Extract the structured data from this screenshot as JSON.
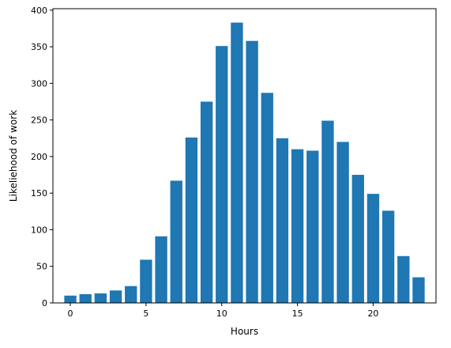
{
  "chart_data": {
    "type": "bar",
    "title": "",
    "xlabel": "Hours",
    "ylabel": "Likeliehood of work",
    "x": [
      0,
      1,
      2,
      3,
      4,
      5,
      6,
      7,
      8,
      9,
      10,
      11,
      12,
      13,
      14,
      15,
      16,
      17,
      18,
      19,
      20,
      21,
      22,
      23
    ],
    "values": [
      10,
      12,
      13,
      17,
      23,
      59,
      91,
      167,
      226,
      275,
      351,
      383,
      358,
      287,
      225,
      210,
      208,
      249,
      220,
      175,
      149,
      126,
      64,
      35
    ],
    "xlim": [
      -1.15,
      24.15
    ],
    "ylim": [
      0,
      402
    ],
    "xticks": [
      0,
      5,
      10,
      15,
      20
    ],
    "yticks": [
      0,
      50,
      100,
      150,
      200,
      250,
      300,
      350,
      400
    ],
    "xtick_labels": [
      "0",
      "5",
      "10",
      "15",
      "20"
    ],
    "ytick_labels": [
      "0",
      "50",
      "100",
      "150",
      "200",
      "250",
      "300",
      "350",
      "400"
    ],
    "bar_color": "#1f77b4",
    "grid": false,
    "legend": "none"
  }
}
